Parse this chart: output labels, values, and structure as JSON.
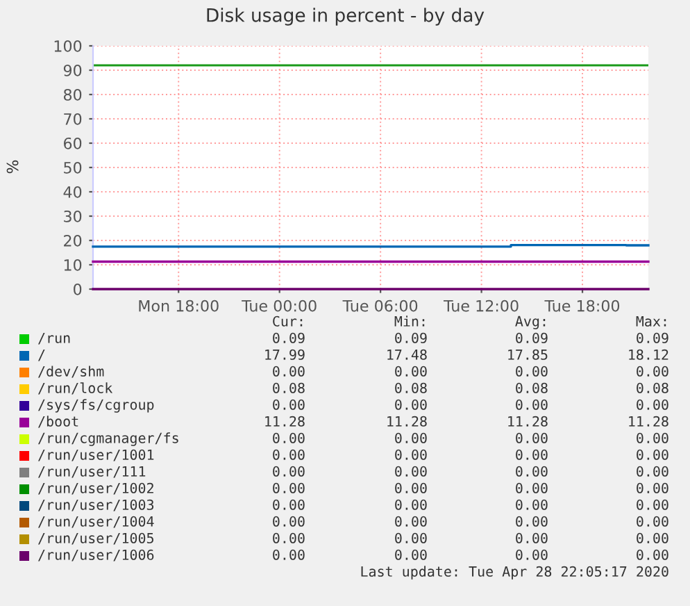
{
  "chart_data": {
    "type": "step",
    "title": "Disk usage in percent - by day",
    "ylabel": "%",
    "xlim": [
      "2020-04-27T12:55",
      "2020-04-28T21:55"
    ],
    "xticks": [
      {
        "value": "2020-04-27T18:00",
        "label": "Mon 18:00"
      },
      {
        "value": "2020-04-28T00:00",
        "label": "Tue 00:00"
      },
      {
        "value": "2020-04-28T06:00",
        "label": "Tue 06:00"
      },
      {
        "value": "2020-04-28T12:00",
        "label": "Tue 12:00"
      },
      {
        "value": "2020-04-28T18:00",
        "label": "Tue 18:00"
      }
    ],
    "ylim": [
      0,
      100
    ],
    "yticks": [
      0,
      10,
      20,
      30,
      40,
      50,
      60,
      70,
      80,
      90,
      100
    ],
    "grid": true,
    "legend": "bottom",
    "ref_lines": [
      {
        "axis": "y",
        "value": 92,
        "color": "#1a9a1a"
      }
    ],
    "series": [
      {
        "name": "/run",
        "color": "#00cc00",
        "values": [
          null,
          null
        ]
      },
      {
        "name": "/",
        "color": "#0066b3",
        "x": [
          "2020-04-27T12:55",
          "2020-04-28T13:45",
          "2020-04-28T20:36",
          "2020-04-28T21:55"
        ],
        "values": [
          17.48,
          18.12,
          17.99,
          17.99
        ]
      },
      {
        "name": "/dev/shm",
        "color": "#ff8000",
        "values": [
          null,
          null
        ]
      },
      {
        "name": "/run/lock",
        "color": "#ffcc00",
        "values": [
          null,
          null
        ]
      },
      {
        "name": "/sys/fs/cgroup",
        "color": "#330099",
        "values": [
          null,
          null
        ]
      },
      {
        "name": "/boot",
        "color": "#990099",
        "x": [
          "2020-04-27T12:55",
          "2020-04-28T21:55"
        ],
        "values": [
          11.28,
          11.28
        ]
      },
      {
        "name": "/run/cgmanager/fs",
        "color": "#ccff00",
        "values": [
          null,
          null
        ]
      },
      {
        "name": "/run/user/1001",
        "color": "#ff0000",
        "values": [
          null,
          null
        ]
      },
      {
        "name": "/run/user/111",
        "color": "#808080",
        "values": [
          null,
          null
        ]
      },
      {
        "name": "/run/user/1002",
        "color": "#008f00",
        "values": [
          null,
          null
        ]
      },
      {
        "name": "/run/user/1003",
        "color": "#00487d",
        "values": [
          null,
          null
        ]
      },
      {
        "name": "/run/user/1004",
        "color": "#b35a00",
        "values": [
          null,
          null
        ]
      },
      {
        "name": "/run/user/1005",
        "color": "#b38f00",
        "values": [
          null,
          null
        ]
      },
      {
        "name": "/run/user/1006",
        "color": "#6b006b",
        "x": [
          "2020-04-27T12:55",
          "2020-04-28T21:55"
        ],
        "values": [
          0,
          0
        ]
      }
    ],
    "annotations": [
      "Cur:",
      "Min:",
      "Avg:",
      "Max:",
      "0.09",
      "0.09",
      "0.09",
      "0.09",
      "17.99",
      "17.48",
      "17.85",
      "18.12",
      "0.00",
      "0.00",
      "0.00",
      "0.00",
      "0.08",
      "0.08",
      "0.08",
      "0.08",
      "0.00",
      "0.00",
      "0.00",
      "0.00",
      "11.28",
      "11.28",
      "11.28",
      "11.28",
      "0.00",
      "0.00",
      "0.00",
      "0.00",
      "0.00",
      "0.00",
      "0.00",
      "0.00",
      "0.00",
      "0.00",
      "0.00",
      "0.00",
      "0.00",
      "0.00",
      "0.00",
      "0.00",
      "0.00",
      "0.00",
      "0.00",
      "0.00",
      "0.00",
      "0.00",
      "0.00",
      "0.00",
      "0.00",
      "0.00",
      "0.00",
      "0.00",
      "0.00",
      "0.00",
      "0.00",
      "0.00",
      "Last update: Tue Apr 28 22:05:17 2020"
    ]
  }
}
